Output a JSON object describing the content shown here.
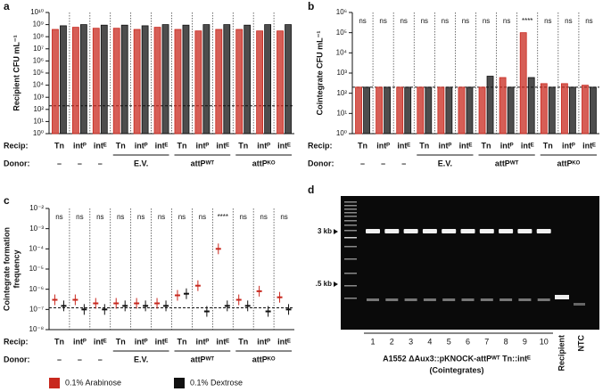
{
  "chart_data": [
    {
      "type": "bar",
      "panel": "a",
      "ylabel": [
        "Recipient CFU mL⁻¹"
      ],
      "row_labels": [
        "Recip:",
        "Donor:"
      ],
      "categories": [
        "Tn",
        "intᴾ",
        "intᴱ",
        "Tn",
        "intᴾ",
        "intᴱ",
        "Tn",
        "intᴾ",
        "intᴱ",
        "Tn",
        "intᴾ",
        "intᴱ"
      ],
      "donor_labels": [
        "–",
        "–",
        "–",
        "E.V.",
        "attPᵂᵀ",
        "attPᴷᴼ"
      ],
      "series": [
        {
          "name": "0.1% Arabinose",
          "color": "#c8281e",
          "values": [
            400000000,
            600000000,
            500000000,
            500000000,
            400000000,
            600000000,
            400000000,
            300000000,
            400000000,
            400000000,
            300000000,
            300000000
          ]
        },
        {
          "name": "0.1% Dextrose",
          "color": "#111111",
          "values": [
            800000000,
            1000000000,
            900000000,
            900000000,
            800000000,
            1000000000,
            900000000,
            1000000000,
            1000000000,
            900000000,
            1000000000,
            1000000000
          ]
        }
      ],
      "log": true,
      "ylim": [
        1,
        10000000000
      ],
      "yticks": [
        {
          "value": 1,
          "label": "10⁰"
        },
        {
          "value": 10,
          "label": "10¹"
        },
        {
          "value": 100,
          "label": "10²"
        },
        {
          "value": 1000,
          "label": "10³"
        },
        {
          "value": 10000,
          "label": "10⁴"
        },
        {
          "value": 100000,
          "label": "10⁵"
        },
        {
          "value": 1000000,
          "label": "10⁶"
        },
        {
          "value": 10000000,
          "label": "10⁷"
        },
        {
          "value": 100000000,
          "label": "10⁸"
        },
        {
          "value": 1000000000,
          "label": "10⁹"
        },
        {
          "value": 10000000000,
          "label": "10¹⁰"
        }
      ],
      "detection_limit": 200
    },
    {
      "type": "bar",
      "panel": "b",
      "ylabel": [
        "Cointegrate CFU mL⁻¹"
      ],
      "row_labels": [
        "Recip:",
        "Donor:"
      ],
      "categories": [
        "Tn",
        "intᴾ",
        "intᴱ",
        "Tn",
        "intᴾ",
        "intᴱ",
        "Tn",
        "intᴾ",
        "intᴱ",
        "Tn",
        "intᴾ",
        "intᴱ"
      ],
      "donor_labels": [
        "–",
        "–",
        "–",
        "E.V.",
        "attPᵂᵀ",
        "attPᴷᴼ"
      ],
      "annotations": [
        "ns",
        "ns",
        "ns",
        "ns",
        "ns",
        "ns",
        "ns",
        "ns",
        "****",
        "ns",
        "ns",
        "ns"
      ],
      "series": [
        {
          "name": "0.1% Arabinose",
          "color": "#c8281e",
          "values": [
            200,
            200,
            200,
            200,
            200,
            200,
            200,
            600,
            100000,
            300,
            300,
            250
          ]
        },
        {
          "name": "0.1% Dextrose",
          "color": "#111111",
          "values": [
            200,
            200,
            200,
            200,
            200,
            200,
            700,
            200,
            600,
            200,
            200,
            200
          ]
        }
      ],
      "log": true,
      "ylim": [
        1,
        1000000
      ],
      "yticks": [
        {
          "value": 1,
          "label": "10⁰"
        },
        {
          "value": 10,
          "label": "10¹"
        },
        {
          "value": 100,
          "label": "10²"
        },
        {
          "value": 1000,
          "label": "10³"
        },
        {
          "value": 10000,
          "label": "10⁴"
        },
        {
          "value": 100000,
          "label": "10⁵"
        },
        {
          "value": 1000000,
          "label": "10⁶"
        }
      ],
      "detection_limit": 200
    },
    {
      "type": "dot",
      "panel": "c",
      "ylabel": [
        "Cointegrate formation",
        "frequency"
      ],
      "row_labels": [
        "Recip:",
        "Donor:"
      ],
      "categories": [
        "Tn",
        "intᴾ",
        "intᴱ",
        "Tn",
        "intᴾ",
        "intᴱ",
        "Tn",
        "intᴾ",
        "intᴱ",
        "Tn",
        "intᴾ",
        "intᴱ"
      ],
      "donor_labels": [
        "–",
        "–",
        "–",
        "E.V.",
        "attPᵂᵀ",
        "attPᴷᴼ"
      ],
      "annotations": [
        "ns",
        "ns",
        "ns",
        "ns",
        "ns",
        "ns",
        "ns",
        "ns",
        "****",
        "ns",
        "ns",
        "ns"
      ],
      "series": [
        {
          "name": "0.1% Arabinose",
          "color": "#c8281e",
          "values": [
            3e-07,
            3e-07,
            2e-07,
            2e-07,
            2e-07,
            2e-07,
            5e-07,
            1.5e-06,
            0.0001,
            3e-07,
            8e-07,
            4e-07
          ]
        },
        {
          "name": "0.1% Dextrose",
          "color": "#111111",
          "values": [
            1.5e-07,
            1e-07,
            1e-07,
            1.5e-07,
            1.5e-07,
            1.5e-07,
            6e-07,
            8e-08,
            1.5e-07,
            1.5e-07,
            8e-08,
            1e-07
          ]
        }
      ],
      "log": true,
      "ylim": [
        1e-08,
        0.01
      ],
      "yticks": [
        {
          "value": 1e-08,
          "label": "10⁻⁸"
        },
        {
          "value": 1e-07,
          "label": "10⁻⁷"
        },
        {
          "value": 1e-06,
          "label": "10⁻⁶"
        },
        {
          "value": 1e-05,
          "label": "10⁻⁵"
        },
        {
          "value": 0.0001,
          "label": "10⁻⁴"
        },
        {
          "value": 0.001,
          "label": "10⁻³"
        },
        {
          "value": 0.01,
          "label": "10⁻²"
        }
      ],
      "detection_limit": 1.2e-07
    }
  ],
  "gel": {
    "panel": "d",
    "markers": [
      "3 kb",
      ".5 kb"
    ],
    "lanes": [
      "1",
      "2",
      "3",
      "4",
      "5",
      "6",
      "7",
      "8",
      "9",
      "10",
      "Recipient",
      "NTC"
    ],
    "caption": "A1552 ΔAux3::pKNOCK-attPᵂᵀ Tn::intᴱ",
    "caption_sub": "(Cointegrates)"
  }
}
